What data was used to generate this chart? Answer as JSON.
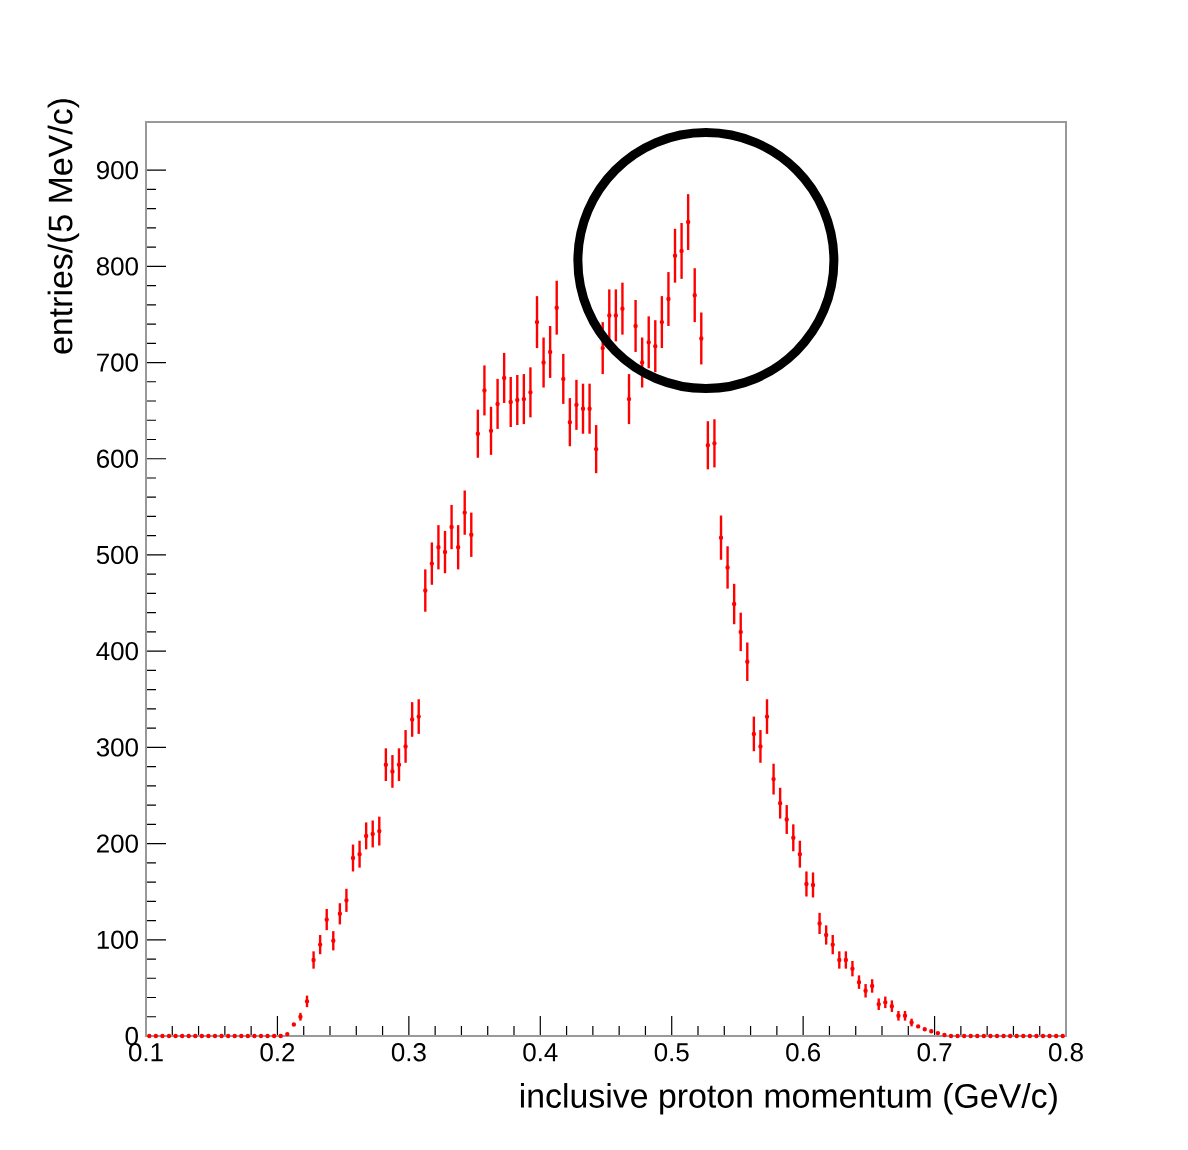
{
  "chart_data": {
    "type": "scatter",
    "xlabel": "inclusive proton momentum (GeV/c)",
    "ylabel": "entries/(5 MeV/c)",
    "xlim": [
      0.1,
      0.8
    ],
    "ylim": [
      0,
      950
    ],
    "xticks": [
      0.1,
      0.2,
      0.3,
      0.4,
      0.5,
      0.6,
      0.7,
      0.8
    ],
    "yticks": [
      0,
      100,
      200,
      300,
      400,
      500,
      600,
      700,
      800,
      900
    ],
    "series": [
      {
        "color": "#ff0000",
        "x": [
          0.1025,
          0.1075,
          0.1125,
          0.1175,
          0.1225,
          0.1275,
          0.1325,
          0.1375,
          0.1425,
          0.1475,
          0.1525,
          0.1575,
          0.1625,
          0.1675,
          0.1725,
          0.1775,
          0.1825,
          0.1875,
          0.1925,
          0.1975,
          0.2025,
          0.2075,
          0.2125,
          0.2175,
          0.2225,
          0.2275,
          0.2325,
          0.2375,
          0.2425,
          0.2475,
          0.2525,
          0.2575,
          0.2625,
          0.2675,
          0.2725,
          0.2775,
          0.2825,
          0.2875,
          0.2925,
          0.2975,
          0.3025,
          0.3075,
          0.3125,
          0.3175,
          0.3225,
          0.3275,
          0.3325,
          0.3375,
          0.3425,
          0.3475,
          0.3525,
          0.3575,
          0.3625,
          0.3675,
          0.3725,
          0.3775,
          0.3825,
          0.3875,
          0.3925,
          0.3975,
          0.4025,
          0.4075,
          0.4125,
          0.4175,
          0.4225,
          0.4275,
          0.4325,
          0.4375,
          0.4425,
          0.4475,
          0.4525,
          0.4575,
          0.4625,
          0.4675,
          0.4725,
          0.4775,
          0.4825,
          0.4875,
          0.4925,
          0.4975,
          0.5025,
          0.5075,
          0.5125,
          0.5175,
          0.5225,
          0.5275,
          0.5325,
          0.5375,
          0.5425,
          0.5475,
          0.5525,
          0.5575,
          0.5625,
          0.5675,
          0.5725,
          0.5775,
          0.5825,
          0.5875,
          0.5925,
          0.5975,
          0.6025,
          0.6075,
          0.6125,
          0.6175,
          0.6225,
          0.6275,
          0.6325,
          0.6375,
          0.6425,
          0.6475,
          0.6525,
          0.6575,
          0.6625,
          0.6675,
          0.6725,
          0.6775,
          0.6825,
          0.6875,
          0.6925,
          0.6975,
          0.7025,
          0.7075,
          0.7125,
          0.7175,
          0.7225,
          0.7275,
          0.7325,
          0.7375,
          0.7425,
          0.7475,
          0.7525,
          0.7575,
          0.7625,
          0.7675,
          0.7725,
          0.7775,
          0.7825,
          0.7875,
          0.7925,
          0.7975
        ],
        "values": [
          0,
          0,
          0,
          0,
          0,
          0,
          0,
          0,
          0,
          0,
          0,
          0,
          0,
          0,
          0,
          0,
          0,
          0,
          0,
          0,
          0,
          2,
          12,
          20,
          36,
          79,
          95,
          121,
          99,
          127,
          141,
          185,
          189,
          208,
          210,
          213,
          282,
          275,
          282,
          301,
          329,
          332,
          463,
          491,
          508,
          503,
          529,
          508,
          544,
          521,
          626,
          671,
          629,
          657,
          684,
          659,
          661,
          662,
          669,
          742,
          700,
          711,
          757,
          683,
          638,
          656,
          652,
          652,
          610,
          715,
          749,
          749,
          756,
          662,
          738,
          700,
          721,
          717,
          742,
          766,
          811,
          816,
          846,
          770,
          725,
          614,
          616,
          518,
          487,
          449,
          420,
          389,
          314,
          301,
          332,
          267,
          242,
          225,
          206,
          189,
          158,
          157,
          117,
          105,
          95,
          79,
          79,
          70,
          56,
          47,
          52,
          33,
          35,
          31,
          21,
          21,
          14,
          10,
          7,
          5,
          3,
          1,
          0,
          0,
          0,
          0,
          0,
          0,
          0,
          0,
          0,
          0,
          0,
          0,
          0,
          0,
          0,
          0,
          0,
          0
        ],
        "errors": [
          null,
          null,
          null,
          null,
          null,
          null,
          null,
          null,
          null,
          null,
          null,
          null,
          null,
          null,
          null,
          null,
          null,
          null,
          null,
          null,
          null,
          null,
          null,
          4,
          6,
          9,
          10,
          11,
          10,
          11,
          12,
          14,
          14,
          14,
          14,
          15,
          17,
          17,
          17,
          17,
          18,
          18,
          22,
          22,
          23,
          22,
          23,
          23,
          23,
          23,
          25,
          26,
          25,
          26,
          26,
          26,
          26,
          26,
          26,
          27,
          26,
          27,
          28,
          26,
          25,
          26,
          26,
          26,
          25,
          27,
          27,
          27,
          27,
          26,
          27,
          26,
          27,
          27,
          27,
          28,
          28,
          29,
          29,
          28,
          27,
          25,
          25,
          23,
          22,
          21,
          20,
          20,
          18,
          17,
          18,
          16,
          16,
          15,
          14,
          14,
          13,
          13,
          11,
          10,
          10,
          9,
          9,
          8,
          7,
          7,
          7,
          6,
          6,
          6,
          5,
          5,
          4,
          null,
          null,
          null,
          null,
          null,
          null,
          null,
          null,
          null,
          null,
          null,
          null,
          null,
          null,
          null,
          null,
          null,
          null,
          null,
          null,
          null,
          null,
          null
        ]
      }
    ]
  }
}
